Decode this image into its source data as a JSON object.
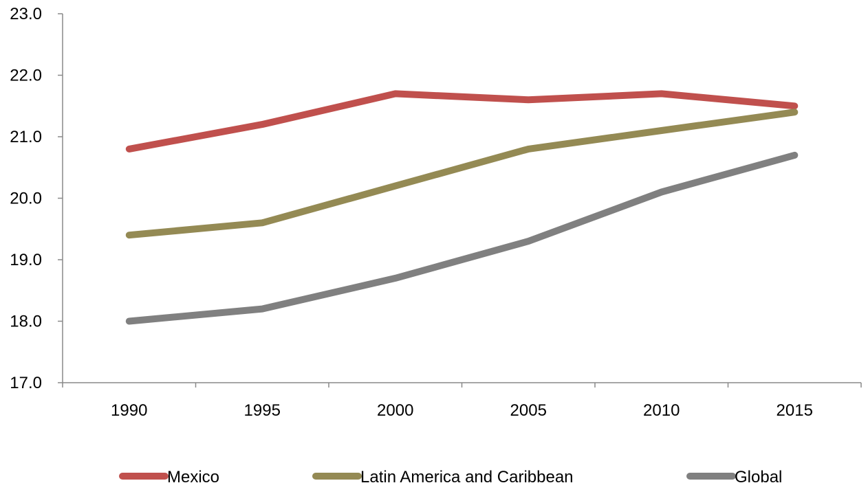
{
  "chart_data": {
    "type": "line",
    "title": "",
    "xlabel": "",
    "ylabel": "",
    "categories": [
      "1990",
      "1995",
      "2000",
      "2005",
      "2010",
      "2015"
    ],
    "ylim": [
      17.0,
      23.0
    ],
    "yticks": [
      "17.0",
      "18.0",
      "19.0",
      "20.0",
      "21.0",
      "22.0",
      "23.0"
    ],
    "grid": false,
    "legend_position": "bottom",
    "series": [
      {
        "name": "Mexico",
        "color": "#C0504D",
        "values": [
          20.8,
          21.2,
          21.7,
          21.6,
          21.7,
          21.5
        ]
      },
      {
        "name": "Latin America and Caribbean",
        "color": "#948A54",
        "values": [
          19.4,
          19.6,
          20.2,
          20.8,
          21.1,
          21.4
        ]
      },
      {
        "name": "Global",
        "color": "#808080",
        "values": [
          18.0,
          18.2,
          18.7,
          19.3,
          20.1,
          20.7
        ]
      }
    ]
  }
}
